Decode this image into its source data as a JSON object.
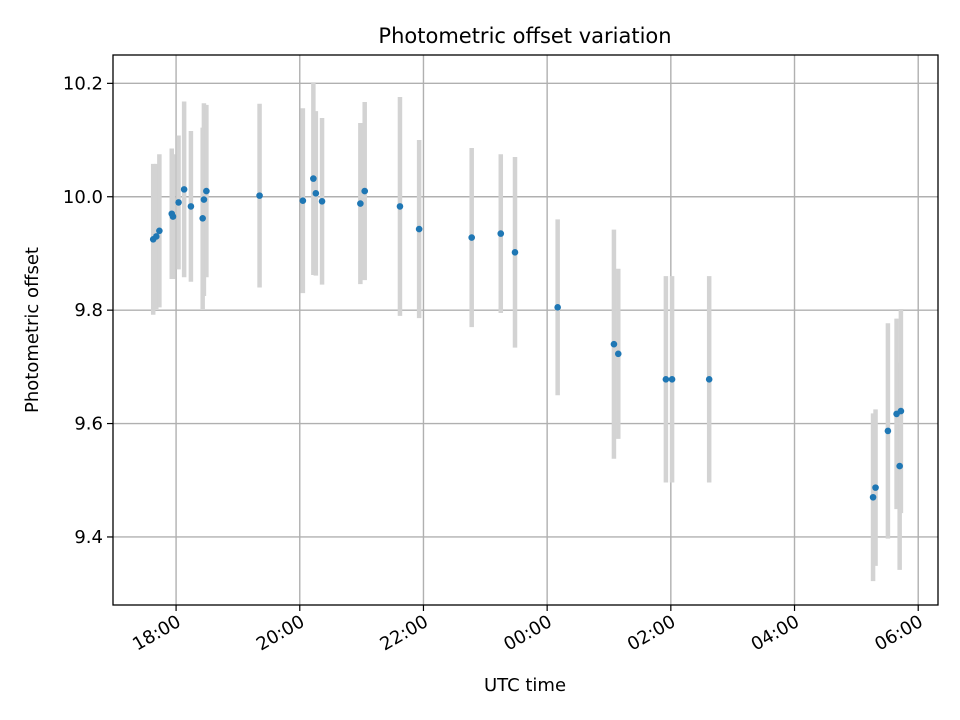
{
  "chart_data": {
    "type": "scatter",
    "title": "Photometric offset variation",
    "xlabel": "UTC time",
    "ylabel": "Photometric offset",
    "x_unit": "hours since 2024-01-01 00:00 UTC (clock time shown on axis)",
    "xlim": [
      16.98,
      30.32
    ],
    "ylim": [
      9.28,
      10.25
    ],
    "x_ticks": [
      {
        "value": 18,
        "label": "18:00"
      },
      {
        "value": 20,
        "label": "20:00"
      },
      {
        "value": 22,
        "label": "22:00"
      },
      {
        "value": 24,
        "label": "00:00"
      },
      {
        "value": 26,
        "label": "02:00"
      },
      {
        "value": 28,
        "label": "04:00"
      },
      {
        "value": 30,
        "label": "06:00"
      }
    ],
    "y_ticks": [
      {
        "value": 9.4,
        "label": "9.4"
      },
      {
        "value": 9.6,
        "label": "9.6"
      },
      {
        "value": 9.8,
        "label": "9.8"
      },
      {
        "value": 10.0,
        "label": "10.0"
      },
      {
        "value": 10.2,
        "label": "10.2"
      }
    ],
    "grid": true,
    "marker_color": "#1f77b4",
    "errorbar_color": "#d3d3d3",
    "points": [
      {
        "x": 17.63,
        "y": 9.925,
        "err": 0.133
      },
      {
        "x": 17.68,
        "y": 9.93,
        "err": 0.128
      },
      {
        "x": 17.73,
        "y": 9.94,
        "err": 0.135
      },
      {
        "x": 17.93,
        "y": 9.97,
        "err": 0.115
      },
      {
        "x": 17.95,
        "y": 9.965,
        "err": 0.11
      },
      {
        "x": 18.04,
        "y": 9.99,
        "err": 0.118
      },
      {
        "x": 18.13,
        "y": 10.013,
        "err": 0.155
      },
      {
        "x": 18.24,
        "y": 9.983,
        "err": 0.133
      },
      {
        "x": 18.43,
        "y": 9.962,
        "err": 0.16
      },
      {
        "x": 18.45,
        "y": 9.995,
        "err": 0.17
      },
      {
        "x": 18.49,
        "y": 10.01,
        "err": 0.152
      },
      {
        "x": 19.35,
        "y": 10.002,
        "err": 0.162
      },
      {
        "x": 20.05,
        "y": 9.993,
        "err": 0.163
      },
      {
        "x": 20.22,
        "y": 10.032,
        "err": 0.17
      },
      {
        "x": 20.26,
        "y": 10.006,
        "err": 0.145
      },
      {
        "x": 20.36,
        "y": 9.992,
        "err": 0.147
      },
      {
        "x": 20.98,
        "y": 9.988,
        "err": 0.142
      },
      {
        "x": 21.05,
        "y": 10.01,
        "err": 0.157
      },
      {
        "x": 21.62,
        "y": 9.983,
        "err": 0.193
      },
      {
        "x": 21.93,
        "y": 9.943,
        "err": 0.157
      },
      {
        "x": 22.78,
        "y": 9.928,
        "err": 0.158
      },
      {
        "x": 23.25,
        "y": 9.935,
        "err": 0.14
      },
      {
        "x": 23.48,
        "y": 9.902,
        "err": 0.168
      },
      {
        "x": 24.17,
        "y": 9.805,
        "err": 0.155
      },
      {
        "x": 25.08,
        "y": 9.74,
        "err": 0.202
      },
      {
        "x": 25.15,
        "y": 9.723,
        "err": 0.15
      },
      {
        "x": 25.92,
        "y": 9.678,
        "err": 0.182
      },
      {
        "x": 26.02,
        "y": 9.678,
        "err": 0.182
      },
      {
        "x": 26.62,
        "y": 9.678,
        "err": 0.182
      },
      {
        "x": 29.27,
        "y": 9.47,
        "err": 0.148
      },
      {
        "x": 29.31,
        "y": 9.487,
        "err": 0.138
      },
      {
        "x": 29.51,
        "y": 9.587,
        "err": 0.19
      },
      {
        "x": 29.65,
        "y": 9.617,
        "err": 0.168
      },
      {
        "x": 29.7,
        "y": 9.525,
        "err": 0.183
      },
      {
        "x": 29.72,
        "y": 9.622,
        "err": 0.18
      }
    ]
  }
}
